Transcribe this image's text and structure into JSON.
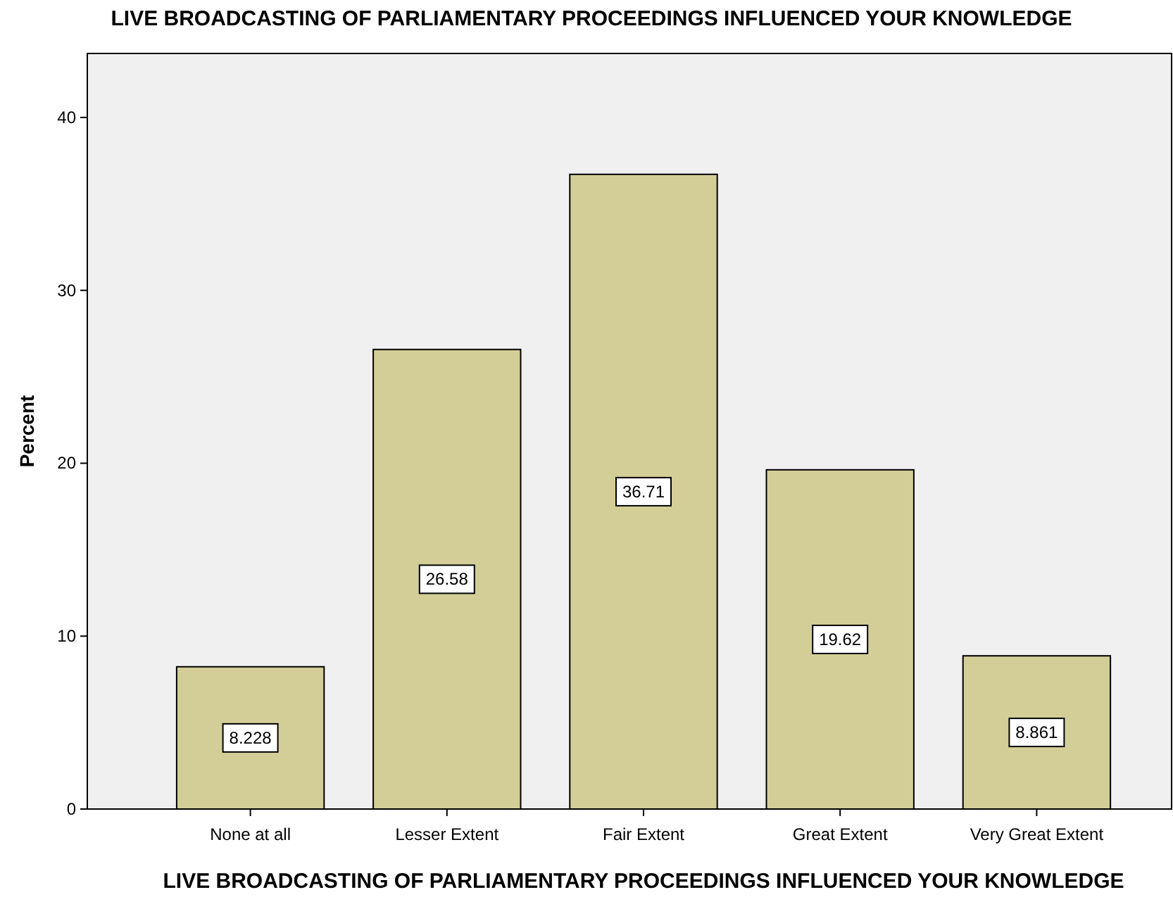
{
  "chart_data": {
    "type": "bar",
    "title": "LIVE BROADCASTING OF PARLIAMENTARY PROCEEDINGS INFLUENCED YOUR KNOWLEDGE",
    "xlabel": "LIVE BROADCASTING OF PARLIAMENTARY PROCEEDINGS INFLUENCED YOUR KNOWLEDGE",
    "ylabel": "Percent",
    "categories": [
      "None at all",
      "Lesser Extent",
      "Fair Extent",
      "Great Extent",
      "Very Great Extent"
    ],
    "values": [
      8.228,
      26.58,
      36.71,
      19.62,
      8.861
    ],
    "color": "#d3ce97",
    "ylim": [
      0,
      43.7
    ],
    "yticks": [
      0,
      10,
      20,
      30,
      40
    ],
    "grid": false,
    "data_labels": true
  }
}
